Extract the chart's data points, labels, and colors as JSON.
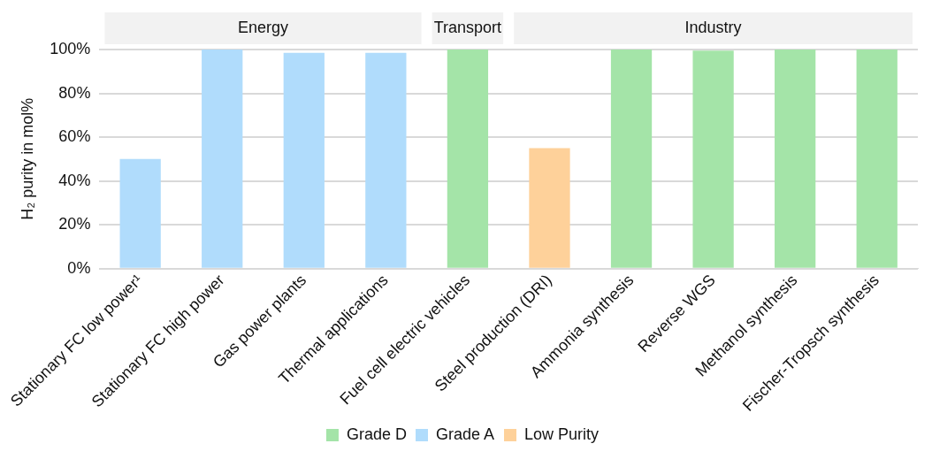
{
  "chart_data": {
    "type": "bar",
    "ylabel": "H₂ purity in mol%",
    "categories": [
      "Stationary FC low power¹",
      "Stationary FC high power",
      "Gas power plants",
      "Thermal applications",
      "Fuel cell electric vehicles",
      "Steel production (DRI)",
      "Ammonia synthesis",
      "Reverse WGS",
      "Methanol synthesis",
      "Fischer-Tropsch synthesis"
    ],
    "series": [
      {
        "name": "Grade D",
        "color": "#a4e4a8",
        "values": [
          null,
          null,
          null,
          null,
          100,
          null,
          100,
          99.5,
          100,
          100
        ]
      },
      {
        "name": "Grade A",
        "color": "#b0dcfc",
        "values": [
          50,
          100,
          98.5,
          98.5,
          null,
          null,
          null,
          null,
          null,
          null
        ]
      },
      {
        "name": "Low Purity",
        "color": "#fed19a",
        "values": [
          null,
          null,
          null,
          null,
          null,
          55,
          null,
          null,
          null,
          null
        ]
      }
    ],
    "ylim": [
      0,
      100
    ],
    "yticks": [
      {
        "value": 0,
        "label": "0%"
      },
      {
        "value": 20,
        "label": "20%"
      },
      {
        "value": 40,
        "label": "40%"
      },
      {
        "value": 60,
        "label": "60%"
      },
      {
        "value": 80,
        "label": "80%"
      },
      {
        "value": 100,
        "label": "100%"
      }
    ],
    "grid": "y",
    "legend": "bottom",
    "annotations": [
      "Energy",
      "Transport",
      "Industry"
    ]
  }
}
